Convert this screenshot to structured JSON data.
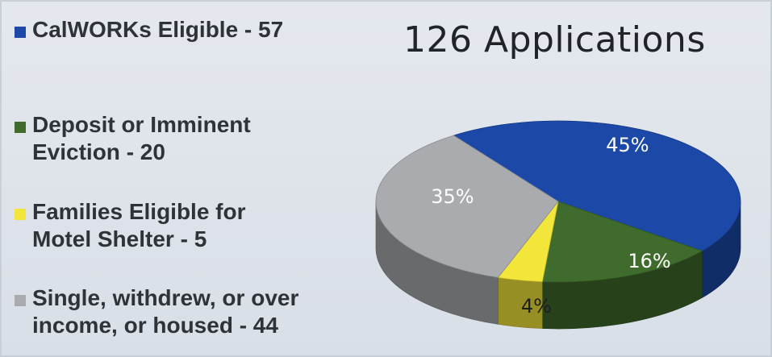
{
  "slide": {
    "title": "126 Applications"
  },
  "legend": [
    {
      "text": "CalWORKs Eligible - 57",
      "color": "#1c48a8"
    },
    {
      "text": "Deposit or Imminent\nEviction - 20",
      "color": "#3f6b2c"
    },
    {
      "text": "Families Eligible for\nMotel Shelter - 5",
      "color": "#f3e63a"
    },
    {
      "text": "Single, withdrew, or over\nincome, or housed -  44",
      "color": "#a9abae"
    }
  ],
  "chart_data": {
    "type": "pie",
    "title": "126 Applications",
    "labels": [
      "CalWORKs Eligible",
      "Deposit or Imminent Eviction",
      "Families Eligible for Motel Shelter",
      "Single, withdrew, or over income, or housed"
    ],
    "values": [
      57,
      20,
      5,
      44
    ],
    "percent_labels": [
      "45%",
      "16%",
      "4%",
      "35%"
    ],
    "colors": [
      "#1c48a8",
      "#3f6b2c",
      "#f3e63a",
      "#a9abae"
    ],
    "legend_position": "left",
    "style": "3d"
  }
}
